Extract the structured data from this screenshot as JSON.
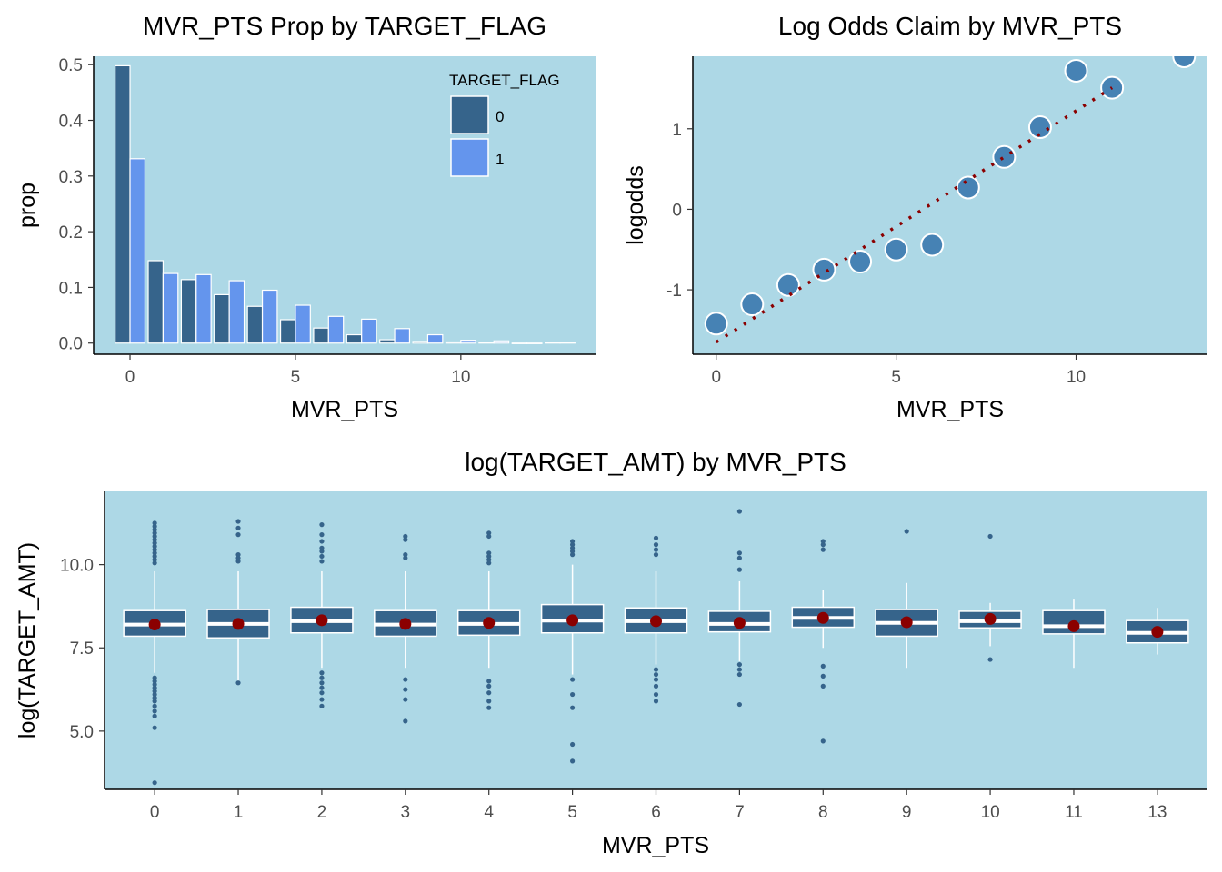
{
  "colors": {
    "panel_bg": "#add8e6",
    "series_0": "#36648b",
    "series_1": "#6495ed",
    "point_fill": "#4682b4",
    "trend_line": "#8b0000",
    "box_fill": "#36648b",
    "mean_point": "#8b0000",
    "outlier": "#36648b",
    "axis": "#000000"
  },
  "chart_data": [
    {
      "type": "bar",
      "title": "MVR_PTS Prop by TARGET_FLAG",
      "xlabel": "MVR_PTS",
      "ylabel": "prop",
      "xlim": [
        -1.1,
        14.1
      ],
      "ylim": [
        -0.02,
        0.515
      ],
      "x_ticks": [
        "0",
        "5",
        "10"
      ],
      "y_ticks": [
        "0.0",
        "0.1",
        "0.2",
        "0.3",
        "0.4",
        "0.5"
      ],
      "legend_position": "top-right",
      "legend_title": "TARGET_FLAG",
      "categories": [
        0,
        1,
        2,
        3,
        4,
        5,
        6,
        7,
        8,
        9,
        10,
        11,
        12,
        13
      ],
      "series": [
        {
          "name": "0",
          "values": [
            0.498,
            0.148,
            0.114,
            0.087,
            0.066,
            0.042,
            0.027,
            0.015,
            0.006,
            0.003,
            0.002,
            0.001,
            0.0,
            0.001
          ]
        },
        {
          "name": "1",
          "values": [
            0.331,
            0.125,
            0.123,
            0.112,
            0.095,
            0.068,
            0.048,
            0.043,
            0.026,
            0.015,
            0.005,
            0.004,
            0.0,
            0.001
          ]
        }
      ],
      "grid": false
    },
    {
      "type": "scatter",
      "title": "Log Odds Claim by MVR_PTS",
      "xlabel": "MVR_PTS",
      "ylabel": "logodds",
      "xlim": [
        -0.65,
        13.65
      ],
      "ylim": [
        -1.8,
        1.9
      ],
      "x_ticks": [
        "0",
        "5",
        "10"
      ],
      "y_ticks": [
        "-1",
        "0",
        "1"
      ],
      "points": {
        "x": [
          0,
          1,
          2,
          3,
          4,
          5,
          6,
          7,
          8,
          9,
          10,
          11,
          13
        ],
        "y": [
          -1.42,
          -1.18,
          -0.94,
          -0.75,
          -0.65,
          -0.5,
          -0.44,
          0.27,
          0.65,
          1.02,
          1.72,
          1.51,
          1.9
        ]
      },
      "trend_line": {
        "style": "dotted",
        "x": [
          0,
          11
        ],
        "y": [
          -1.65,
          1.51
        ]
      },
      "grid": false
    },
    {
      "type": "box",
      "title": "log(TARGET_AMT) by MVR_PTS",
      "xlabel": "MVR_PTS",
      "ylabel": "log(TARGET_AMT)",
      "ylim": [
        3.25,
        12.2
      ],
      "y_ticks": [
        "5.0",
        "7.5",
        "10.0"
      ],
      "categories": [
        "0",
        "1",
        "2",
        "3",
        "4",
        "5",
        "6",
        "7",
        "8",
        "9",
        "10",
        "11",
        "13"
      ],
      "boxes": [
        {
          "q1": 7.85,
          "median": 8.2,
          "q3": 8.62,
          "whisker_low": 6.75,
          "whisker_high": 9.8,
          "mean": 8.2,
          "outliers": [
            11.25,
            11.15,
            11.05,
            10.95,
            10.85,
            10.75,
            10.65,
            10.55,
            10.45,
            10.35,
            10.25,
            10.15,
            10.05,
            6.6,
            6.5,
            6.4,
            6.3,
            6.2,
            6.1,
            6.0,
            5.9,
            5.75,
            5.6,
            5.45,
            5.1,
            3.45
          ]
        },
        {
          "q1": 7.8,
          "median": 8.22,
          "q3": 8.65,
          "whisker_low": 6.45,
          "whisker_high": 9.8,
          "mean": 8.22,
          "outliers": [
            11.3,
            11.1,
            10.9,
            10.3,
            10.2,
            10.1,
            6.45
          ]
        },
        {
          "q1": 7.95,
          "median": 8.3,
          "q3": 8.72,
          "whisker_low": 6.9,
          "whisker_high": 9.8,
          "mean": 8.33,
          "outliers": [
            11.2,
            10.9,
            10.7,
            10.5,
            10.4,
            10.25,
            10.1,
            6.75,
            6.6,
            6.45,
            6.3,
            6.15,
            5.95,
            5.75
          ]
        },
        {
          "q1": 7.85,
          "median": 8.2,
          "q3": 8.62,
          "whisker_low": 6.9,
          "whisker_high": 9.8,
          "mean": 8.22,
          "outliers": [
            10.85,
            10.75,
            10.3,
            10.2,
            6.55,
            6.25,
            5.95,
            5.3
          ]
        },
        {
          "q1": 7.88,
          "median": 8.22,
          "q3": 8.62,
          "whisker_low": 6.9,
          "whisker_high": 9.8,
          "mean": 8.25,
          "outliers": [
            10.95,
            10.85,
            10.35,
            10.25,
            10.15,
            10.05,
            6.5,
            6.35,
            6.15,
            5.9,
            5.7
          ]
        },
        {
          "q1": 7.95,
          "median": 8.32,
          "q3": 8.8,
          "whisker_low": 6.7,
          "whisker_high": 10.0,
          "mean": 8.33,
          "outliers": [
            10.7,
            10.6,
            10.5,
            10.4,
            10.3,
            6.55,
            6.1,
            5.7,
            4.6,
            4.1
          ]
        },
        {
          "q1": 7.95,
          "median": 8.3,
          "q3": 8.7,
          "whisker_low": 7.0,
          "whisker_high": 9.8,
          "mean": 8.3,
          "outliers": [
            10.8,
            10.6,
            10.45,
            10.3,
            6.85,
            6.7,
            6.55,
            6.35,
            6.1,
            5.9
          ]
        },
        {
          "q1": 7.98,
          "median": 8.22,
          "q3": 8.6,
          "whisker_low": 7.1,
          "whisker_high": 9.5,
          "mean": 8.25,
          "outliers": [
            11.6,
            10.35,
            10.2,
            9.85,
            7.0,
            6.85,
            6.7,
            5.8
          ]
        },
        {
          "q1": 8.12,
          "median": 8.4,
          "q3": 8.72,
          "whisker_low": 7.5,
          "whisker_high": 9.25,
          "mean": 8.4,
          "outliers": [
            10.7,
            10.6,
            10.45,
            6.95,
            6.65,
            6.35,
            4.7
          ]
        },
        {
          "q1": 7.85,
          "median": 8.25,
          "q3": 8.65,
          "whisker_low": 6.9,
          "whisker_high": 9.45,
          "mean": 8.27,
          "outliers": [
            11.0
          ]
        },
        {
          "q1": 8.1,
          "median": 8.3,
          "q3": 8.6,
          "whisker_low": 7.55,
          "whisker_high": 8.85,
          "mean": 8.37,
          "outliers": [
            10.85,
            7.15
          ]
        },
        {
          "q1": 7.92,
          "median": 8.15,
          "q3": 8.62,
          "whisker_low": 6.9,
          "whisker_high": 8.95,
          "mean": 8.15,
          "outliers": []
        },
        {
          "q1": 7.65,
          "median": 7.95,
          "q3": 8.32,
          "whisker_low": 7.3,
          "whisker_high": 8.7,
          "mean": 7.98,
          "outliers": []
        }
      ],
      "grid": false
    }
  ]
}
